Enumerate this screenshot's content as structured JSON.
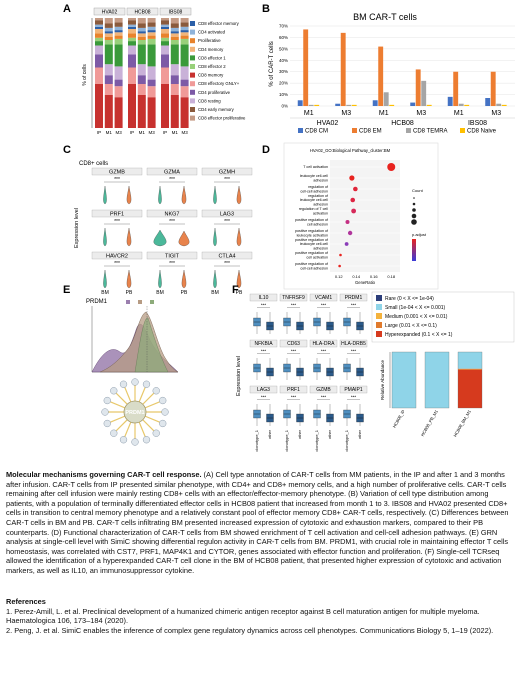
{
  "panels": {
    "A": {
      "label": "A",
      "ylabel": "% of cells",
      "groups": [
        "HVA02",
        "HCB08",
        "IBS08"
      ],
      "xticks": [
        "IP",
        "M1",
        "M3",
        "IP",
        "M1",
        "M3",
        "IP",
        "M1",
        "M3"
      ],
      "legend": [
        "CD8 effector memory",
        "CD4 activated",
        "Proliferative",
        "CD4 memory",
        "CD8 effector 1",
        "CD8 effector 2",
        "CD8 memory",
        "CD8 effectory GNLY+",
        "CD4 proliferative",
        "CD8 resting",
        "CD4 early memory",
        "CD8 effector proliferative"
      ],
      "colors": [
        "#2b5fa8",
        "#8fb3d9",
        "#e8832c",
        "#f2b57a",
        "#3a9a3a",
        "#98d07a",
        "#c7312f",
        "#f09a98",
        "#7d5aa6",
        "#c9b1d8",
        "#8a5a3c",
        "#c49a84"
      ]
    },
    "B": {
      "label": "B",
      "title": "BM CAR-T cells",
      "ylabel": "% of CAR-T cells",
      "yticks": [
        "0%",
        "10%",
        "20%",
        "30%",
        "40%",
        "50%",
        "60%",
        "70%"
      ],
      "legend": [
        "CD8 CM",
        "CD8 EM",
        "CD8 TEMRA",
        "CD8 Naive"
      ],
      "colors": [
        "#4472c4",
        "#ed7d31",
        "#a5a5a5",
        "#ffc000"
      ]
    },
    "C": {
      "label": "C",
      "title": "CD8+ cells",
      "ylabel": "Expression level",
      "genes": [
        "GZMB",
        "GZMA",
        "GZMH",
        "PRF1",
        "NKG7",
        "LAG3",
        "HAVCR2",
        "TIGIT",
        "CTLA4"
      ],
      "sig": "***",
      "xticks": [
        "BM",
        "PB"
      ]
    },
    "D": {
      "label": "D",
      "title": "HVA02_GO:Biological Pathway_cluster:BM",
      "terms": [
        "T cell activation",
        "leukocyte cell-cell adhesion",
        "regulation of cell-cell adhesion",
        "regulation of leukocyte cell-cell adhesion",
        "regulation of T cell activation",
        "positive regulation of cell adhesion",
        "positive regulation of leukocyte activation",
        "positive regulation of leukocyte cell-cell adhesion",
        "positive regulation of cell activation",
        "positive regulation of cell-cell adhesion"
      ],
      "xlabel": "GeneRatio",
      "xticks": [
        "0.12",
        "0.14",
        "0.16",
        "0.18"
      ],
      "count_label": "Count",
      "padj_label": "p.adjust"
    },
    "E": {
      "label": "E",
      "title": "PRDM1",
      "hub": "PRDM1"
    },
    "F": {
      "label": "F",
      "ylabel": "Expression level",
      "genes": [
        "IL10",
        "TNFRSF9",
        "VCAM1",
        "PRDM1",
        "NFKBIA",
        "CD63",
        "HLA-DRA",
        "HLA-DRB5",
        "LAG3",
        "PRF1",
        "GZMB",
        "PMAIP1"
      ],
      "sig": "***",
      "xticks": [
        "clonotype_1",
        "other"
      ],
      "legend": [
        "Rare (0 < X <= 1e-04)",
        "Small (1e-04 < X <= 0.001)",
        "Medium (0.001 < X <= 0.01)",
        "Large (0.01 < X <= 0.1)",
        "Hyperexpanded (0.1 < X <= 1)"
      ],
      "legend_colors": [
        "#2c3e7a",
        "#8fd4e8",
        "#f4b23c",
        "#e07a2c",
        "#d63a1e"
      ],
      "bar_ylabel": "Relative Abundance",
      "bar_x": [
        "HCB08_IP",
        "HCB08_PB_M1",
        "HCB08_BM_M1"
      ]
    }
  },
  "caption": {
    "title": "Molecular mechanisms governing CAR-T cell response.",
    "body": " (A) Cell type annotation of CAR-T cells from MM patients, in the IP and after 1 and 3 months after infusion. CAR-T cells from IP presented similar phenotype, with CD4+ and CD8+ memory cells, and a high number of proliferative cells. CAR-T cells remaining after cell infusion were mainly resting CD8+ cells with an effector/effector-memory phenotype. (B) Variation of cell type distribution among patients, with a population of terminally differentiated effector cells in HCB08 patient that increased from month 1 to 3. IBS08 and HVA02 presented CD8+ cells in transition to central memory phenotype and a relatively constant pool of effector memory CD8+ CAR-T cells, respectively. (C) Differences between CAR-T cells in BM and PB. CAR-T cells infiltrating BM presented increased expression of cytotoxic and exhaustion markers, compared to their PB counterparts. (D) Functional characterization of CAR-T cells from BM showed enrichment of T cell activation and cell-cell adhesion pathways. (E) GRN analysis at single-cell level with SimiC showing differential regulon activity in CAR-T cells from BM. PRDM1, with crucial role in maintaining effector T cells homeostasis, was correlated with CST7, PRF1, MAP4K1 and CYTOR, genes associated with effector function and proliferation. (F) Single-cell TCRseq allowed the identification of a hyperexpanded CAR-T cell clone in the BM of HCB08 patient, that presented higher expression of cytotoxic and activation markers, as well as IL10, an immunosuppressor cytokine."
  },
  "references": {
    "heading": "References",
    "items": [
      "1.     Perez-Amill, L. et al. Preclinical development of a humanized chimeric antigen receptor against B cell maturation antigen for multiple myeloma. Haematologica 106, 173–184 (2020).",
      "2.     Peng, J. et al. SimiC enables the inference of complex gene regulatory dynamics across cell phenotypes. Communications Biology 5, 1–19 (2022)."
    ]
  },
  "chart_data": [
    {
      "type": "bar",
      "title": "BM CAR-T cells",
      "ylabel": "% of CAR-T cells",
      "ylim": [
        0,
        70
      ],
      "categories": [
        "M1",
        "M3",
        "M1",
        "M3",
        "M1",
        "M3"
      ],
      "groups": [
        "HVA02",
        "HVA02",
        "HCB08",
        "HCB08",
        "IBS08",
        "IBS08"
      ],
      "series": [
        {
          "name": "CD8 CM",
          "values": [
            5,
            2,
            5,
            3,
            8,
            7
          ]
        },
        {
          "name": "CD8 EM",
          "values": [
            67,
            64,
            52,
            32,
            30,
            30
          ]
        },
        {
          "name": "CD8 TEMRA",
          "values": [
            1,
            1,
            12,
            22,
            2,
            2
          ]
        },
        {
          "name": "CD8 Naive",
          "values": [
            1,
            1,
            1,
            1,
            1,
            1
          ]
        }
      ]
    }
  ]
}
